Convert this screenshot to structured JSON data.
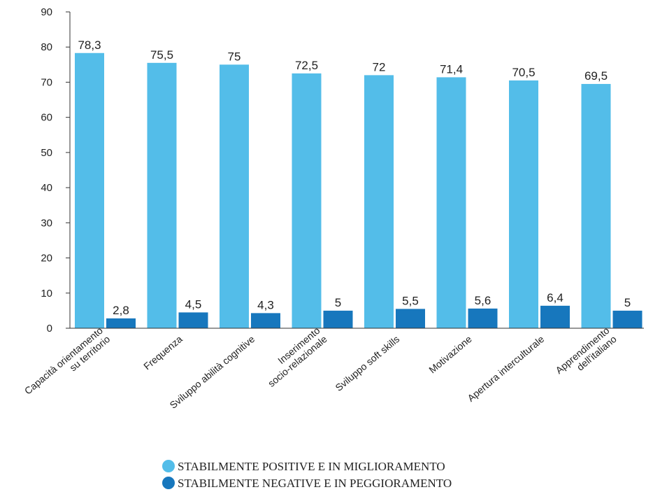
{
  "chart_data": {
    "type": "bar",
    "categories": [
      [
        "Capacità orientamento",
        "su territorio"
      ],
      [
        "Frequenza"
      ],
      [
        "Sviluppo abilità cognitive"
      ],
      [
        "Inserimento",
        "socio-relazionale"
      ],
      [
        "Sviluppo soft skills"
      ],
      [
        "Motivazione"
      ],
      [
        "Apertura interculturale"
      ],
      [
        "Apprendimento",
        "dell'italiano"
      ]
    ],
    "series": [
      {
        "name": "STABILMENTE POSITIVE E IN MIGLIORAMENTO",
        "color": "#53bde9",
        "values": [
          78.3,
          75.5,
          75,
          72.5,
          72,
          71.4,
          70.5,
          69.5
        ],
        "value_labels": [
          "78,3",
          "75,5",
          "75",
          "72,5",
          "72",
          "71,4",
          "70,5",
          "69,5"
        ]
      },
      {
        "name": "STABILMENTE NEGATIVE E IN PEGGIORAMENTO",
        "color": "#1777bd",
        "values": [
          2.8,
          4.5,
          4.3,
          5,
          5.5,
          5.6,
          6.4,
          5
        ],
        "value_labels": [
          "2,8",
          "4,5",
          "4,3",
          "5",
          "5,5",
          "5,6",
          "6,4",
          "5"
        ]
      }
    ],
    "ylim": [
      0,
      90
    ],
    "yticks": [
      0,
      10,
      20,
      30,
      40,
      50,
      60,
      70,
      80,
      90
    ],
    "grid": false
  }
}
